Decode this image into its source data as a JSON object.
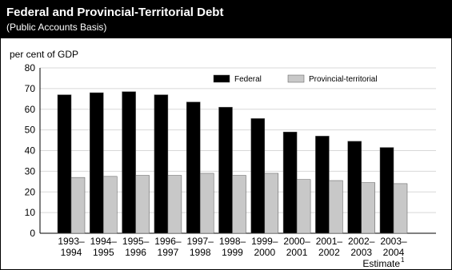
{
  "chart_data": {
    "type": "bar",
    "title": "Federal and Provincial-Territorial Debt",
    "subtitle": "(Public Accounts Basis)",
    "y_label": "per cent of GDP",
    "categories": [
      "1993–\n1994",
      "1994–\n1995",
      "1995–\n1996",
      "1996–\n1997",
      "1997–\n1998",
      "1998–\n1999",
      "1999–\n2000",
      "2000–\n2001",
      "2001–\n2002",
      "2002–\n2003",
      "2003–\n2004"
    ],
    "series": [
      {
        "name": "Federal",
        "color": "#000000",
        "values": [
          67,
          68,
          68.5,
          67,
          63.5,
          61,
          55.5,
          49,
          47,
          44.5,
          41.5
        ]
      },
      {
        "name": "Provincial-territorial",
        "color": "#c8c8c8",
        "values": [
          27,
          27.5,
          28,
          28,
          29,
          28,
          29,
          26,
          25.5,
          24.5,
          24
        ]
      }
    ],
    "annotations": [
      {
        "text": "Estimate",
        "superscript": "1"
      }
    ],
    "ylim": [
      0,
      80
    ],
    "yticks": [
      0,
      10,
      20,
      30,
      40,
      50,
      60,
      70,
      80
    ],
    "grid": true
  }
}
